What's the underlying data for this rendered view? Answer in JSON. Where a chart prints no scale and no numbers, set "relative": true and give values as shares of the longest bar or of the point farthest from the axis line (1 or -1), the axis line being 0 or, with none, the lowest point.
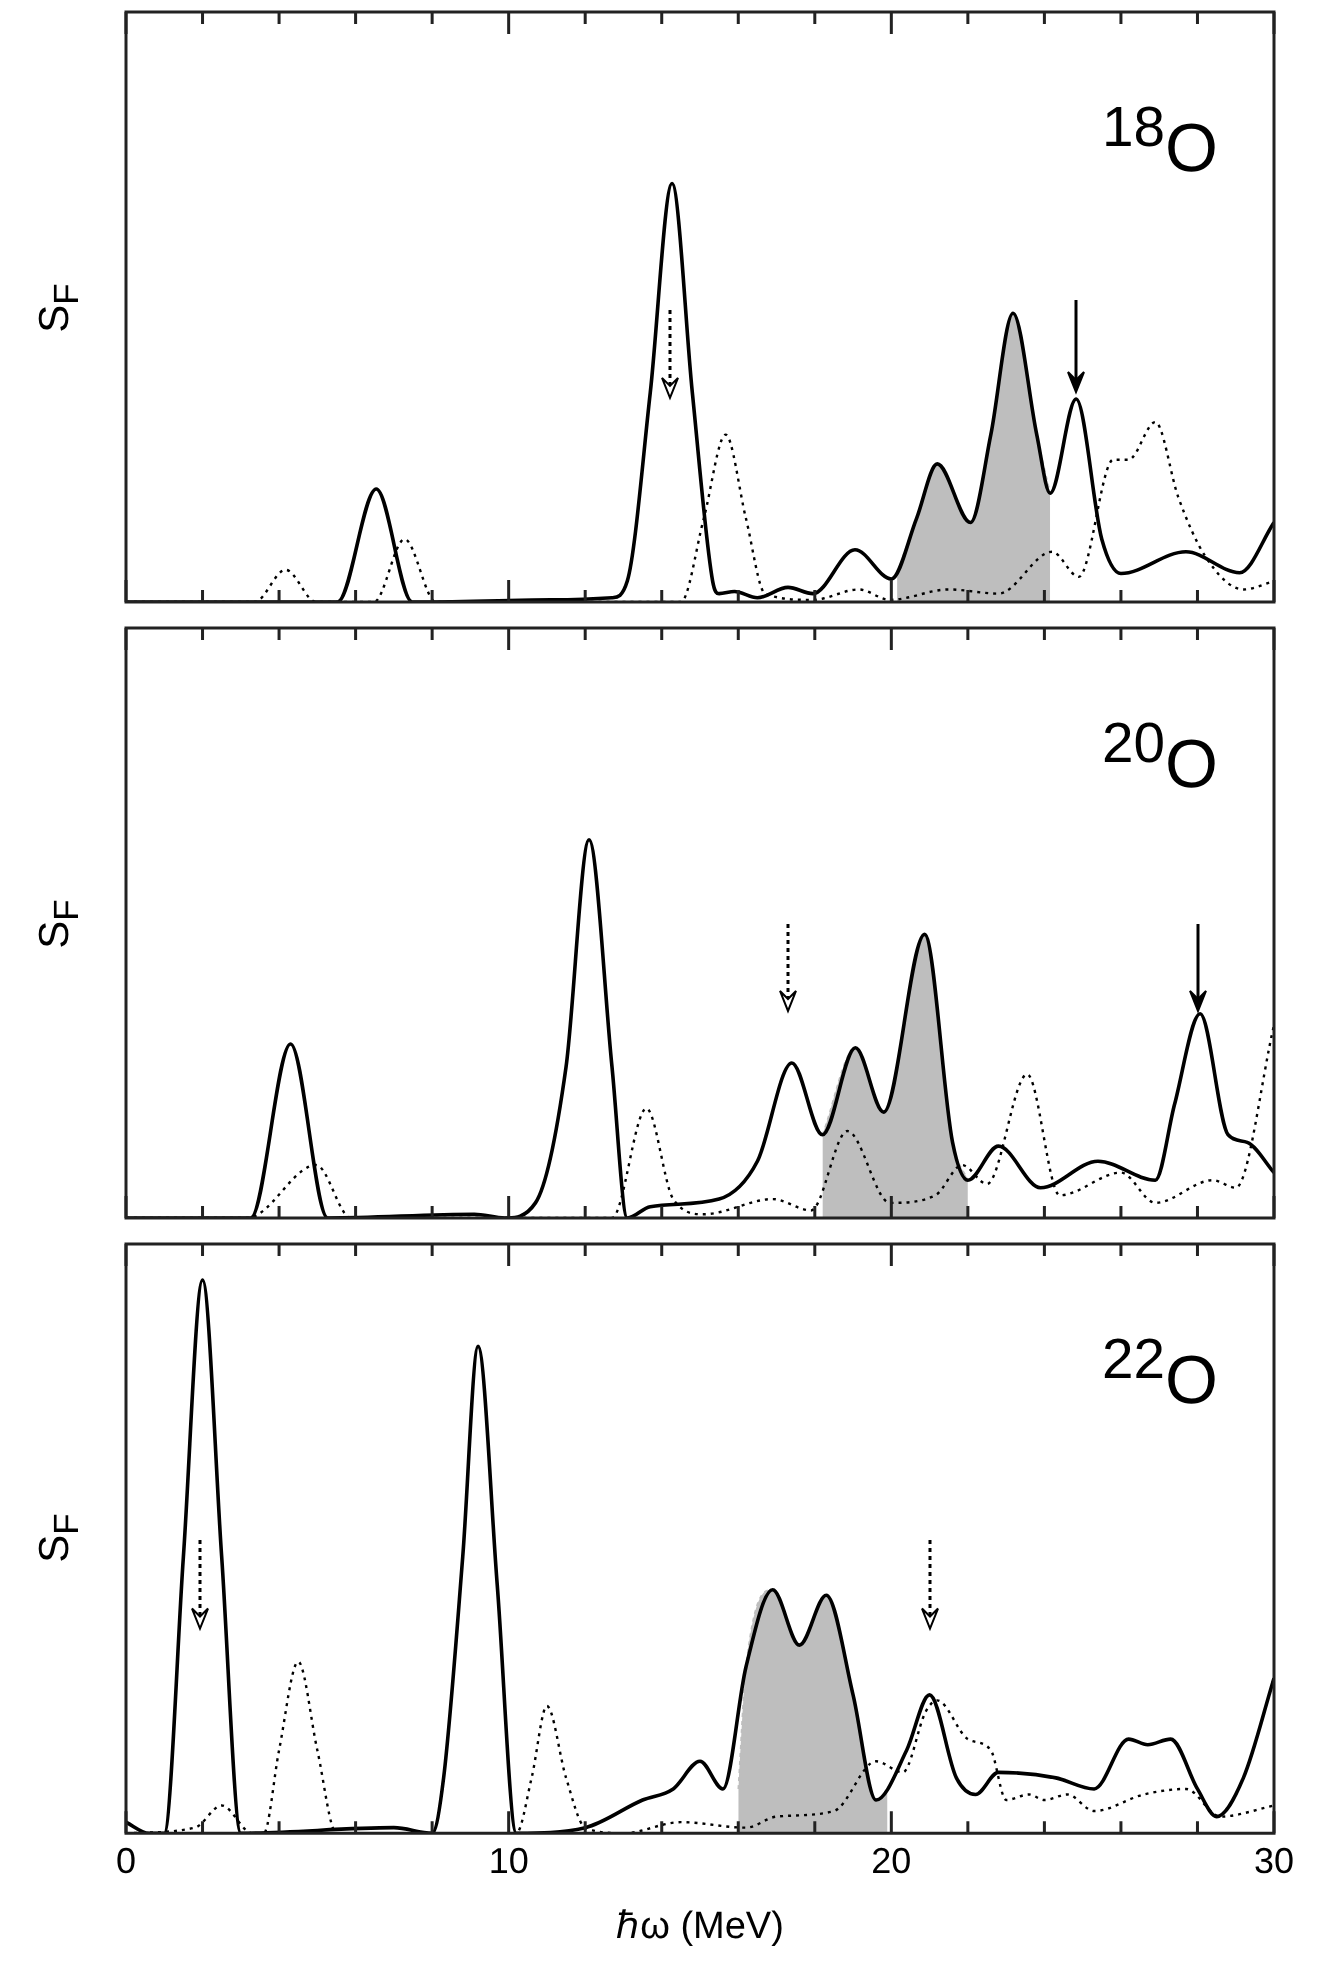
{
  "chart_data": [
    {
      "type": "line",
      "relative": true,
      "ylabel": "S$_{F}$",
      "annotations": [
        "$^{18}$O"
      ],
      "xlim": [
        0,
        30
      ],
      "tick_labels": false,
      "marker": "none",
      "xticks": [
        0,
        {
          "value": 2,
          "label": null
        },
        {
          "value": 4,
          "label": null
        },
        {
          "value": 6,
          "label": null
        },
        {
          "value": 8,
          "label": null
        },
        10,
        {
          "value": 12,
          "label": null
        },
        {
          "value": 14,
          "label": null
        },
        {
          "value": 16,
          "label": null
        },
        {
          "value": 18,
          "label": null
        },
        20,
        {
          "value": 22,
          "label": null
        },
        {
          "value": 24,
          "label": null
        },
        {
          "value": 26,
          "label": null
        },
        {
          "value": 28,
          "label": null
        },
        30
      ],
      "series": [
        {
          "type": "area",
          "color": "#bebebe",
          "x": [
            20.15,
            20.66,
            21.2,
            22.07,
            22.6,
            23.18,
            23.8,
            24.15
          ],
          "values": [
            0.07,
            0.2,
            0.33,
            0.19,
            0.4,
            0.69,
            0.4,
            0.26
          ]
        },
        {
          "type": "line",
          "line_style": "solid",
          "color": "#000000",
          "x": [
            0,
            5.53,
            6.54,
            7.48,
            11.1,
            12.7,
            13.1,
            13.7,
            14.27,
            14.8,
            15.33,
            15.5,
            15.9,
            16.5,
            17.3,
            17.95,
            19.05,
            20.0,
            20.66,
            21.2,
            22.07,
            22.6,
            23.18,
            23.8,
            24.15,
            24.83,
            25.5,
            26.0,
            27.7,
            29.1,
            30
          ],
          "values": [
            0,
            0,
            0.27,
            0,
            0.005,
            0.01,
            0.05,
            0.5,
            1,
            0.5,
            0.05,
            0.02,
            0.025,
            0.01,
            0.035,
            0.02,
            0.125,
            0.055,
            0.2,
            0.33,
            0.19,
            0.4,
            0.69,
            0.4,
            0.26,
            0.485,
            0.15,
            0.068,
            0.12,
            0.07,
            0.19
          ]
        },
        {
          "type": "line",
          "line_style": "dotted",
          "color": "#000000",
          "x": [
            0,
            3.36,
            4.17,
            4.97,
            6.48,
            7.28,
            8.1,
            14.5,
            15.1,
            15.67,
            16.2,
            16.7,
            17.95,
            19.15,
            19.96,
            21.5,
            22.8,
            24.2,
            24.9,
            25.8,
            26.2,
            26.9,
            27.5,
            28.2,
            29.2,
            30
          ],
          "values": [
            0,
            0,
            0.077,
            0,
            0,
            0.15,
            0,
            0,
            0.2,
            0.4,
            0.2,
            0.02,
            0.005,
            0.03,
            0.005,
            0.03,
            0.02,
            0.12,
            0.06,
            0.34,
            0.34,
            0.43,
            0.25,
            0.11,
            0.03,
            0.05
          ]
        }
      ]
    },
    {
      "type": "line",
      "relative": true,
      "ylabel": "S$_{F}$",
      "annotations": [
        "$^{20}$O"
      ],
      "xlim": [
        0,
        30
      ],
      "tick_labels": false,
      "marker": "none",
      "xticks": [
        0,
        {
          "value": 2,
          "label": null
        },
        {
          "value": 4,
          "label": null
        },
        {
          "value": 6,
          "label": null
        },
        {
          "value": 8,
          "label": null
        },
        10,
        {
          "value": 12,
          "label": null
        },
        {
          "value": 14,
          "label": null
        },
        {
          "value": 16,
          "label": null
        },
        {
          "value": 18,
          "label": null
        },
        20,
        {
          "value": 22,
          "label": null
        },
        {
          "value": 24,
          "label": null
        },
        {
          "value": 26,
          "label": null
        },
        {
          "value": 28,
          "label": null
        },
        30
      ],
      "series": [
        {
          "type": "area",
          "color": "#bebebe",
          "x": [
            18.2,
            19.06,
            19.8,
            20.87,
            21.6,
            22.0
          ],
          "values": [
            0.22,
            0.45,
            0.28,
            0.75,
            0.2,
            0.1
          ]
        },
        {
          "type": "line",
          "line_style": "solid",
          "color": "#000000",
          "x": [
            0,
            3.26,
            4.3,
            5.27,
            9.1,
            9.9,
            10.7,
            11.5,
            12.1,
            12.7,
            13.1,
            13.7,
            15.5,
            16.5,
            17.4,
            18.2,
            19.06,
            19.8,
            20.87,
            21.6,
            22.0,
            22.8,
            23.9,
            25.4,
            26.9,
            27.4,
            28.07,
            28.8,
            29.3,
            30
          ],
          "values": [
            0,
            0,
            0.46,
            0,
            0.01,
            0,
            0.04,
            0.4,
            1,
            0.4,
            0,
            0.03,
            0.05,
            0.15,
            0.41,
            0.22,
            0.45,
            0.28,
            0.75,
            0.2,
            0.1,
            0.19,
            0.08,
            0.15,
            0.1,
            0.3,
            0.54,
            0.22,
            0.2,
            0.12
          ]
        },
        {
          "type": "line",
          "line_style": "dotted",
          "color": "#000000",
          "x": [
            0,
            3.2,
            3.46,
            4.97,
            5.88,
            12.7,
            13.6,
            14.3,
            15.1,
            16.9,
            17.9,
            18.85,
            19.96,
            21.15,
            21.85,
            22.5,
            23.55,
            24.4,
            26.0,
            26.9,
            28.4,
            29.0,
            30
          ],
          "values": [
            0,
            0,
            0.01,
            0.14,
            0,
            0,
            0.29,
            0.05,
            0.01,
            0.05,
            0.02,
            0.23,
            0.04,
            0.06,
            0.14,
            0.09,
            0.38,
            0.06,
            0.12,
            0.04,
            0.1,
            0.08,
            0.51
          ]
        }
      ]
    },
    {
      "type": "line",
      "relative": true,
      "ylabel": "S$_{F}$",
      "xlabel": "ℏω (MeV)",
      "annotations": [
        "$^{22}$O"
      ],
      "xlim": [
        0,
        30
      ],
      "tick_labels": "x",
      "marker": "none",
      "xticks": [
        0,
        {
          "value": 2,
          "label": null
        },
        {
          "value": 4,
          "label": null
        },
        {
          "value": 6,
          "label": null
        },
        {
          "value": 8,
          "label": null
        },
        10,
        {
          "value": 12,
          "label": null
        },
        {
          "value": 14,
          "label": null
        },
        {
          "value": 16,
          "label": null
        },
        {
          "value": 18,
          "label": null
        },
        20,
        {
          "value": 22,
          "label": null
        },
        {
          "value": 24,
          "label": null
        },
        {
          "value": 26,
          "label": null
        },
        {
          "value": 28,
          "label": null
        },
        30
      ],
      "series": [
        {
          "type": "area",
          "color": "#bebebe",
          "x": [
            16.0,
            16.2,
            16.9,
            17.6,
            18.3,
            19.0,
            19.6,
            19.9
          ],
          "values": [
            0.08,
            0.3,
            0.44,
            0.34,
            0.43,
            0.25,
            0.06,
            0.08
          ]
        },
        {
          "type": "line",
          "line_style": "solid",
          "color": "#000000",
          "x": [
            0,
            0.6,
            1.0,
            1.5,
            2.0,
            2.5,
            3.0,
            7.0,
            8.0,
            8.3,
            8.8,
            9.2,
            9.7,
            10.2,
            12.0,
            13.5,
            14.3,
            15.0,
            15.6,
            16.2,
            16.9,
            17.6,
            18.3,
            19.0,
            19.6,
            20.4,
            21.0,
            21.7,
            22.2,
            22.8,
            24.3,
            25.3,
            26.2,
            26.7,
            27.3,
            28.0,
            28.5,
            29.2,
            30
          ],
          "values": [
            0.02,
            0,
            0,
            0.5,
            1,
            0.5,
            0,
            0.01,
            0,
            0.1,
            0.5,
            0.88,
            0.45,
            0,
            0.01,
            0.06,
            0.08,
            0.13,
            0.08,
            0.3,
            0.44,
            0.34,
            0.43,
            0.25,
            0.06,
            0.15,
            0.25,
            0.1,
            0.07,
            0.11,
            0.1,
            0.08,
            0.17,
            0.16,
            0.17,
            0.08,
            0.03,
            0.1,
            0.28
          ]
        },
        {
          "type": "line",
          "line_style": "dotted",
          "color": "#000000",
          "x": [
            0,
            1.8,
            2.5,
            3.3,
            3.6,
            4.0,
            4.5,
            5.0,
            5.5,
            10.2,
            10.6,
            11.0,
            11.5,
            12.0,
            13.0,
            14.5,
            16.2,
            17.0,
            18.5,
            19.6,
            20.3,
            20.9,
            21.2,
            22.0,
            22.6,
            23.0,
            23.6,
            24.0,
            24.6,
            25.3,
            26.6,
            27.7,
            28.6,
            30
          ],
          "values": [
            0,
            0.01,
            0.05,
            0,
            0,
            0.15,
            0.31,
            0.15,
            0,
            0,
            0.1,
            0.23,
            0.1,
            0.01,
            0,
            0.02,
            0.01,
            0.03,
            0.04,
            0.13,
            0.11,
            0.22,
            0.24,
            0.17,
            0.15,
            0.06,
            0.07,
            0.06,
            0.07,
            0.04,
            0.07,
            0.08,
            0.03,
            0.05
          ]
        }
      ]
    }
  ]
}
